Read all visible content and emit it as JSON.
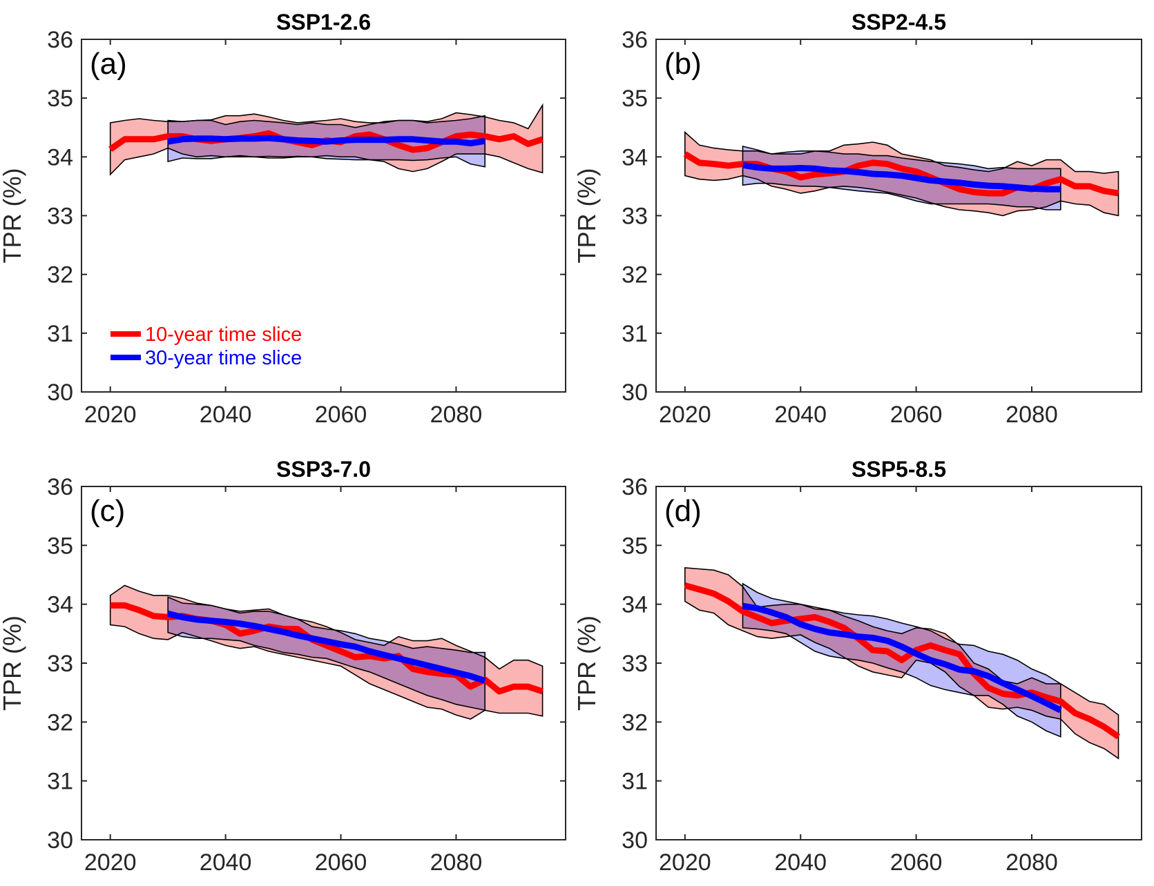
{
  "chart_data": [
    {
      "type": "line",
      "title": "SSP1-2.6",
      "panel_label": "(a)",
      "xlabel": "",
      "ylabel": "TPR (%)",
      "xlim": [
        2015,
        2099
      ],
      "ylim": [
        30,
        36
      ],
      "xticks": [
        2020,
        2040,
        2060,
        2080
      ],
      "yticks": [
        30,
        31,
        32,
        33,
        34,
        35,
        36
      ],
      "grid": false,
      "legend": {
        "placement": "bottom-left",
        "entries": [
          "10-year time slice",
          "30-year time slice"
        ]
      },
      "series": [
        {
          "name": "10-year time slice",
          "x_start": 2020,
          "x_step": 2.5,
          "mean": [
            34.13,
            34.3,
            34.3,
            34.3,
            34.35,
            34.35,
            34.3,
            34.27,
            34.3,
            34.32,
            34.35,
            34.4,
            34.3,
            34.25,
            34.2,
            34.28,
            34.25,
            34.35,
            34.38,
            34.3,
            34.2,
            34.12,
            34.15,
            34.25,
            34.35,
            34.38,
            34.35,
            34.3,
            34.35,
            34.22,
            34.3
          ],
          "upper": [
            34.58,
            34.62,
            34.65,
            34.62,
            34.6,
            34.6,
            34.62,
            34.63,
            34.7,
            34.7,
            34.73,
            34.68,
            34.62,
            34.58,
            34.6,
            34.62,
            34.65,
            34.6,
            34.58,
            34.58,
            34.62,
            34.62,
            34.6,
            34.65,
            34.75,
            34.72,
            34.68,
            34.62,
            34.58,
            34.48,
            34.88
          ],
          "lower": [
            33.7,
            33.95,
            34.0,
            34.05,
            34.15,
            34.05,
            34.0,
            34.02,
            34.0,
            34.0,
            34.0,
            33.98,
            33.98,
            34.0,
            34.0,
            34.02,
            34.0,
            34.0,
            33.95,
            33.92,
            33.8,
            33.75,
            33.8,
            33.92,
            34.05,
            34.05,
            34.05,
            34.0,
            33.9,
            33.8,
            33.73
          ]
        },
        {
          "name": "30-year time slice",
          "x_start": 2030,
          "x_step": 2.5,
          "mean": [
            34.26,
            34.3,
            34.31,
            34.31,
            34.3,
            34.31,
            34.31,
            34.32,
            34.3,
            34.28,
            34.27,
            34.26,
            34.28,
            34.29,
            34.29,
            34.29,
            34.3,
            34.3,
            34.28,
            34.26,
            34.26,
            34.23,
            34.27
          ],
          "upper": [
            34.62,
            34.6,
            34.62,
            34.62,
            34.55,
            34.6,
            34.62,
            34.6,
            34.58,
            34.55,
            34.58,
            34.55,
            34.55,
            34.5,
            34.55,
            34.6,
            34.62,
            34.62,
            34.58,
            34.6,
            34.62,
            34.65,
            34.7
          ],
          "lower": [
            33.92,
            33.98,
            33.97,
            33.97,
            34.0,
            34.02,
            34.0,
            34.01,
            34.0,
            34.01,
            34.0,
            33.97,
            33.96,
            33.95,
            33.95,
            33.95,
            33.95,
            33.94,
            33.95,
            33.98,
            34.0,
            33.88,
            33.83
          ]
        }
      ]
    },
    {
      "type": "line",
      "title": "SSP2-4.5",
      "panel_label": "(b)",
      "xlabel": "",
      "ylabel": "TPR (%)",
      "xlim": [
        2015,
        2099
      ],
      "ylim": [
        30,
        36
      ],
      "xticks": [
        2020,
        2040,
        2060,
        2080
      ],
      "yticks": [
        30,
        31,
        32,
        33,
        34,
        35,
        36
      ],
      "grid": false,
      "series": [
        {
          "name": "10-year time slice",
          "x_start": 2020,
          "x_step": 2.5,
          "mean": [
            34.05,
            33.9,
            33.88,
            33.85,
            33.88,
            33.88,
            33.8,
            33.75,
            33.65,
            33.7,
            33.72,
            33.75,
            33.85,
            33.9,
            33.88,
            33.8,
            33.75,
            33.65,
            33.55,
            33.45,
            33.4,
            33.38,
            33.38,
            33.48,
            33.45,
            33.55,
            33.62,
            33.5,
            33.5,
            33.42,
            33.38
          ],
          "upper": [
            34.42,
            34.2,
            34.15,
            34.12,
            34.1,
            34.1,
            34.05,
            34.05,
            34.05,
            34.1,
            34.1,
            34.2,
            34.22,
            34.25,
            34.2,
            34.05,
            34.0,
            33.95,
            33.85,
            33.82,
            33.78,
            33.75,
            33.8,
            33.92,
            33.85,
            33.95,
            33.95,
            33.75,
            33.75,
            33.72,
            33.75
          ],
          "lower": [
            33.68,
            33.62,
            33.6,
            33.62,
            33.68,
            33.62,
            33.5,
            33.45,
            33.38,
            33.42,
            33.48,
            33.5,
            33.48,
            33.45,
            33.4,
            33.35,
            33.3,
            33.22,
            33.15,
            33.1,
            33.08,
            33.05,
            33.0,
            33.08,
            33.1,
            33.15,
            33.25,
            33.2,
            33.18,
            33.05,
            33.0
          ]
        },
        {
          "name": "30-year time slice",
          "x_start": 2030,
          "x_step": 2.5,
          "mean": [
            33.86,
            33.82,
            33.8,
            33.8,
            33.81,
            33.8,
            33.77,
            33.76,
            33.74,
            33.71,
            33.7,
            33.68,
            33.64,
            33.6,
            33.58,
            33.56,
            33.53,
            33.51,
            33.5,
            33.48,
            33.46,
            33.45,
            33.45
          ],
          "upper": [
            34.18,
            34.12,
            34.05,
            34.08,
            34.1,
            34.1,
            34.08,
            34.05,
            34.05,
            34.02,
            34.02,
            33.98,
            33.95,
            33.92,
            33.9,
            33.88,
            33.85,
            33.8,
            33.82,
            33.8,
            33.8,
            33.8,
            33.8
          ],
          "lower": [
            33.52,
            33.55,
            33.55,
            33.52,
            33.5,
            33.5,
            33.48,
            33.45,
            33.42,
            33.4,
            33.38,
            33.32,
            33.25,
            33.2,
            33.2,
            33.2,
            33.2,
            33.2,
            33.18,
            33.15,
            33.15,
            33.1,
            33.1
          ]
        }
      ]
    },
    {
      "type": "line",
      "title": "SSP3-7.0",
      "panel_label": "(c)",
      "xlabel": "",
      "ylabel": "TPR (%)",
      "xlim": [
        2015,
        2099
      ],
      "ylim": [
        30,
        36
      ],
      "xticks": [
        2020,
        2040,
        2060,
        2080
      ],
      "yticks": [
        30,
        31,
        32,
        33,
        34,
        35,
        36
      ],
      "grid": false,
      "series": [
        {
          "name": "10-year time slice",
          "x_start": 2020,
          "x_step": 2.5,
          "mean": [
            33.98,
            33.98,
            33.9,
            33.8,
            33.78,
            33.8,
            33.75,
            33.72,
            33.65,
            33.5,
            33.55,
            33.62,
            33.58,
            33.58,
            33.4,
            33.3,
            33.2,
            33.1,
            33.12,
            33.08,
            33.12,
            32.9,
            32.85,
            32.82,
            32.8,
            32.6,
            32.72,
            32.52,
            32.6,
            32.6,
            32.52
          ],
          "upper": [
            34.15,
            34.32,
            34.22,
            34.15,
            34.15,
            34.1,
            34.02,
            33.98,
            33.92,
            33.88,
            33.9,
            33.92,
            33.82,
            33.75,
            33.7,
            33.62,
            33.52,
            33.4,
            33.35,
            33.3,
            33.45,
            33.38,
            33.38,
            33.42,
            33.3,
            33.2,
            33.1,
            32.9,
            33.05,
            33.05,
            32.95
          ],
          "lower": [
            33.65,
            33.62,
            33.5,
            33.42,
            33.4,
            33.52,
            33.45,
            33.38,
            33.3,
            33.25,
            33.28,
            33.2,
            33.15,
            33.1,
            33.05,
            33.0,
            32.95,
            32.8,
            32.65,
            32.55,
            32.45,
            32.35,
            32.25,
            32.22,
            32.12,
            32.05,
            32.2,
            32.15,
            32.15,
            32.15,
            32.1
          ]
        },
        {
          "name": "30-year time slice",
          "x_start": 2030,
          "x_step": 2.5,
          "mean": [
            33.84,
            33.78,
            33.74,
            33.72,
            33.7,
            33.67,
            33.63,
            33.58,
            33.53,
            33.47,
            33.42,
            33.37,
            33.32,
            33.28,
            33.2,
            33.14,
            33.08,
            33.02,
            32.96,
            32.9,
            32.84,
            32.78,
            32.7
          ],
          "upper": [
            34.12,
            34.02,
            34.0,
            33.98,
            33.92,
            33.85,
            33.88,
            33.88,
            33.82,
            33.75,
            33.62,
            33.58,
            33.55,
            33.5,
            33.42,
            33.38,
            33.32,
            33.25,
            33.28,
            33.25,
            33.22,
            33.18,
            33.18
          ],
          "lower": [
            33.52,
            33.45,
            33.42,
            33.42,
            33.4,
            33.38,
            33.3,
            33.25,
            33.18,
            33.15,
            33.1,
            33.08,
            33.0,
            32.92,
            32.85,
            32.75,
            32.65,
            32.55,
            32.45,
            32.38,
            32.3,
            32.25,
            32.2
          ]
        }
      ]
    },
    {
      "type": "line",
      "title": "SSP5-8.5",
      "panel_label": "(d)",
      "xlabel": "",
      "ylabel": "TPR (%)",
      "xlim": [
        2015,
        2099
      ],
      "ylim": [
        30,
        36
      ],
      "xticks": [
        2020,
        2040,
        2060,
        2080
      ],
      "yticks": [
        30,
        31,
        32,
        33,
        34,
        35,
        36
      ],
      "grid": false,
      "series": [
        {
          "name": "10-year time slice",
          "x_start": 2020,
          "x_step": 2.5,
          "mean": [
            34.32,
            34.25,
            34.18,
            34.05,
            33.88,
            33.78,
            33.68,
            33.72,
            33.75,
            33.78,
            33.7,
            33.6,
            33.42,
            33.22,
            33.2,
            33.05,
            33.22,
            33.3,
            33.22,
            33.15,
            32.82,
            32.58,
            32.48,
            32.45,
            32.5,
            32.42,
            32.35,
            32.15,
            32.05,
            31.92,
            31.75
          ],
          "upper": [
            34.62,
            34.6,
            34.58,
            34.5,
            34.3,
            33.95,
            33.98,
            34.0,
            34.0,
            33.95,
            33.9,
            33.8,
            33.72,
            33.62,
            33.55,
            33.5,
            33.6,
            33.58,
            33.5,
            33.3,
            33.0,
            32.9,
            32.7,
            32.65,
            32.75,
            32.65,
            32.65,
            32.5,
            32.35,
            32.3,
            32.12
          ],
          "lower": [
            34.05,
            33.9,
            33.85,
            33.65,
            33.55,
            33.45,
            33.42,
            33.45,
            33.48,
            33.35,
            33.25,
            33.1,
            32.95,
            32.85,
            32.8,
            32.75,
            33.05,
            33.0,
            32.85,
            32.6,
            32.45,
            32.25,
            32.22,
            32.25,
            32.2,
            32.1,
            32.05,
            31.8,
            31.65,
            31.55,
            31.38
          ]
        },
        {
          "name": "30-year time slice",
          "x_start": 2030,
          "x_step": 2.5,
          "mean": [
            33.97,
            33.93,
            33.86,
            33.78,
            33.66,
            33.58,
            33.52,
            33.49,
            33.45,
            33.43,
            33.38,
            33.28,
            33.16,
            33.05,
            32.98,
            32.89,
            32.86,
            32.78,
            32.66,
            32.55,
            32.44,
            32.32,
            32.2
          ],
          "upper": [
            34.35,
            34.2,
            34.1,
            34.05,
            34.0,
            33.92,
            33.9,
            33.85,
            33.82,
            33.8,
            33.75,
            33.68,
            33.62,
            33.55,
            33.42,
            33.32,
            33.3,
            33.2,
            33.15,
            33.05,
            32.9,
            32.8,
            32.65
          ],
          "lower": [
            33.6,
            33.58,
            33.55,
            33.5,
            33.35,
            33.2,
            33.12,
            33.08,
            33.05,
            33.0,
            32.92,
            32.85,
            32.75,
            32.62,
            32.55,
            32.5,
            32.45,
            32.45,
            32.3,
            32.1,
            32.0,
            31.85,
            31.75
          ]
        }
      ]
    }
  ],
  "legend": {
    "entries": [
      {
        "label": "10-year time slice",
        "color": "#ff0000"
      },
      {
        "label": "30-year time slice",
        "color": "#0000ff"
      }
    ]
  },
  "colors": {
    "line10": "#ff0000",
    "line30": "#0000ff",
    "band10": "#fbb4b4",
    "band30": "#b1b1fb",
    "overlap": "#ac7cc6",
    "axis": "#262626"
  }
}
